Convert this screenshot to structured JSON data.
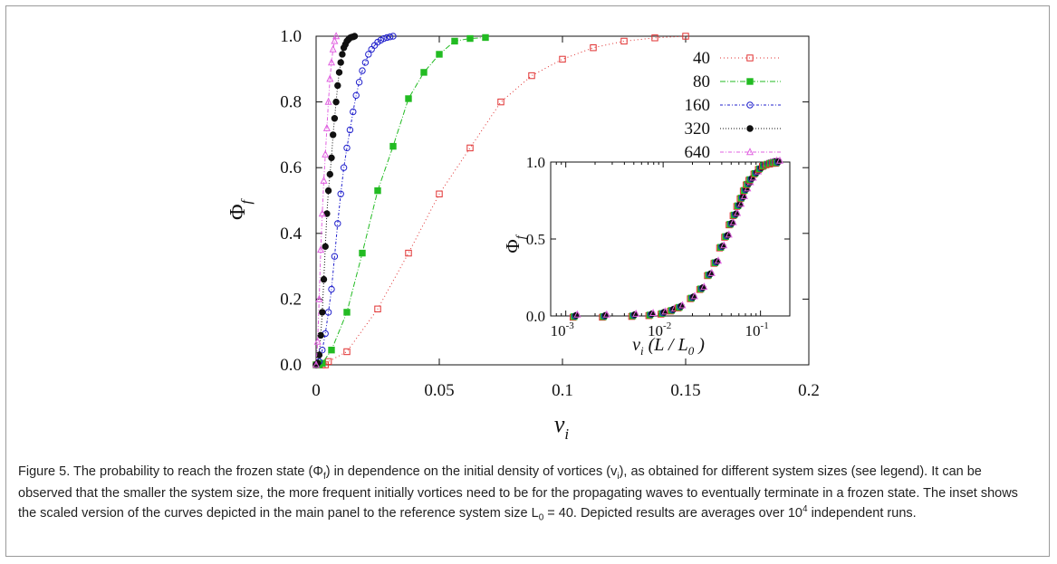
{
  "chart_data": [
    {
      "type": "line",
      "xlabel": "v_i",
      "ylabel": "Φ_f",
      "xlim": [
        0,
        0.2
      ],
      "ylim": [
        0,
        1.0
      ],
      "xticks": [
        "0",
        "0.05",
        "0.1",
        "0.15",
        "0.2"
      ],
      "yticks": [
        "0.0",
        "0.2",
        "0.4",
        "0.6",
        "0.8",
        "1.0"
      ],
      "legend_position": "top-right",
      "series": [
        {
          "name": "40",
          "color": "#e03030",
          "marker": "open-square",
          "dash": "1,3",
          "x": [
            0,
            0.00125,
            0.0025,
            0.00375,
            0.005,
            0.0125,
            0.025,
            0.0375,
            0.05,
            0.0625,
            0.075,
            0.0875,
            0.1,
            0.1125,
            0.125,
            0.1375,
            0.15
          ],
          "y": [
            0.0,
            0.0,
            0.0,
            0.0,
            0.01,
            0.04,
            0.17,
            0.34,
            0.52,
            0.66,
            0.8,
            0.88,
            0.93,
            0.965,
            0.985,
            0.995,
            1.0
          ]
        },
        {
          "name": "80",
          "color": "#22bb22",
          "marker": "filled-square",
          "dash": "6,2,1,2",
          "x": [
            0,
            0.00125,
            0.0025,
            0.00625,
            0.0125,
            0.01875,
            0.025,
            0.03125,
            0.0375,
            0.04375,
            0.05,
            0.05625,
            0.0625,
            0.06875
          ],
          "y": [
            0.0,
            0.0,
            0.005,
            0.045,
            0.16,
            0.34,
            0.53,
            0.665,
            0.81,
            0.89,
            0.945,
            0.985,
            0.993,
            0.996
          ]
        },
        {
          "name": "160",
          "color": "#2020cc",
          "marker": "open-circle",
          "dash": "3,2,1,2",
          "x": [
            0,
            0.00125,
            0.0025,
            0.00375,
            0.005,
            0.00625,
            0.0075,
            0.00875,
            0.01,
            0.01125,
            0.0125,
            0.01375,
            0.015,
            0.01625,
            0.0175,
            0.01875,
            0.02,
            0.02125,
            0.0225,
            0.02375,
            0.025,
            0.02625,
            0.0275,
            0.02875,
            0.03,
            0.03125
          ],
          "y": [
            0.0,
            0.01,
            0.045,
            0.095,
            0.16,
            0.23,
            0.33,
            0.43,
            0.52,
            0.6,
            0.66,
            0.715,
            0.77,
            0.82,
            0.86,
            0.895,
            0.92,
            0.945,
            0.96,
            0.972,
            0.982,
            0.988,
            0.993,
            0.996,
            0.998,
            1.0
          ]
        },
        {
          "name": "320",
          "color": "#111111",
          "marker": "filled-circle",
          "dash": "1,2",
          "x": [
            0,
            0.000625,
            0.00125,
            0.001875,
            0.0025,
            0.003125,
            0.00375,
            0.004375,
            0.005,
            0.005625,
            0.00625,
            0.006875,
            0.0075,
            0.008125,
            0.00875,
            0.009375,
            0.01,
            0.010625,
            0.01125,
            0.011875,
            0.0125,
            0.013125,
            0.01375,
            0.014375,
            0.015,
            0.015625
          ],
          "y": [
            0.0,
            0.005,
            0.03,
            0.09,
            0.16,
            0.26,
            0.36,
            0.46,
            0.53,
            0.58,
            0.63,
            0.7,
            0.75,
            0.8,
            0.85,
            0.89,
            0.92,
            0.945,
            0.965,
            0.975,
            0.985,
            0.99,
            0.995,
            0.997,
            0.998,
            1.0
          ]
        },
        {
          "name": "640",
          "color": "#e060e0",
          "marker": "open-triangle",
          "dash": "4,2,1,2",
          "x": [
            0,
            0.000625,
            0.00125,
            0.001875,
            0.0025,
            0.003125,
            0.00375,
            0.004375,
            0.005,
            0.005625,
            0.00625,
            0.006875,
            0.0075,
            0.008125
          ],
          "y": [
            0.0,
            0.07,
            0.2,
            0.35,
            0.46,
            0.56,
            0.64,
            0.72,
            0.8,
            0.87,
            0.92,
            0.96,
            0.985,
            1.0
          ]
        }
      ]
    },
    {
      "type": "scatter",
      "inset": true,
      "xlabel": "v_i (L / L_0 )",
      "ylabel": "Φ_f",
      "x_scale": "log",
      "xlim": [
        0.0007,
        0.2
      ],
      "ylim": [
        0,
        1.0
      ],
      "xticks": [
        "10^-3",
        "10^-2",
        "10^-1"
      ],
      "yticks": [
        "0.0",
        "0.5",
        "1.0"
      ],
      "points": {
        "x": [
          0.00125,
          0.0025,
          0.005,
          0.0075,
          0.01,
          0.0125,
          0.015,
          0.02,
          0.025,
          0.03,
          0.035,
          0.04,
          0.045,
          0.05,
          0.055,
          0.06,
          0.065,
          0.07,
          0.075,
          0.08,
          0.09,
          0.1,
          0.11,
          0.12,
          0.13,
          0.14,
          0.15
        ],
        "y": [
          0.0,
          0.0,
          0.005,
          0.01,
          0.02,
          0.04,
          0.06,
          0.12,
          0.18,
          0.27,
          0.35,
          0.45,
          0.52,
          0.6,
          0.66,
          0.72,
          0.77,
          0.82,
          0.86,
          0.89,
          0.93,
          0.96,
          0.98,
          0.99,
          0.995,
          1.0,
          1.0
        ]
      }
    }
  ],
  "caption": {
    "prefix": "Figure 5. The probability to reach the frozen state (",
    "phi": "Φ",
    "phi_sub": "f",
    "mid1": ") in dependence on the initial density of vortices (",
    "v": "v",
    "v_sub": "i",
    "mid2": "), as obtained for different system sizes (see legend). It can be observed that the smaller the system size, the more frequent initially vortices need to be for the propagating waves to eventually terminate in a frozen state. The inset shows the scaled version of the curves depicted in the main panel to the reference system size L",
    "L_sub": "0",
    "mid3": " = 40. Depicted results are averages over 10",
    "sup": "4",
    "suffix": " independent runs."
  }
}
